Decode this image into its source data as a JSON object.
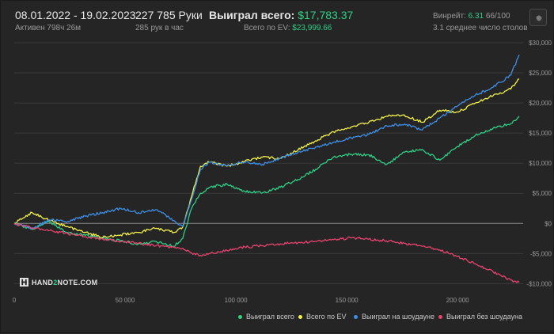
{
  "header": {
    "date_range": "08.01.2022 - 19.02.2023",
    "active_label": "Активен 798ч 26м",
    "hands_label": "227 785 Руки",
    "hands_per_hour": "285 рук в час",
    "won_total_label": "Выиграл всего:",
    "won_total_value": "$17,783.37",
    "ev_label": "Всего по EV:",
    "ev_value": "$23,999.66",
    "winrate_label": "Винрейт:",
    "winrate_value": "6.31",
    "winrate_rest": "66/100",
    "tables_label": "3.1 среднее число столов"
  },
  "logo": {
    "text_a": "HAND",
    "text_b": "2",
    "text_c": "NOTE.COM"
  },
  "icons": {
    "settings": "gear-icon",
    "logo": "hand2note-logo-icon"
  },
  "colors": {
    "won_total": "#2fcf86",
    "ev": "#f2f24a",
    "showdown": "#3f8fe6",
    "non_showdown": "#e8436f",
    "grid": "#3a3a3a",
    "zero_line": "#8c8c8c"
  },
  "chart_data": {
    "type": "line",
    "title": "",
    "xlabel": "",
    "ylabel": "",
    "xlim": [
      0,
      227785
    ],
    "ylim": [
      -11000,
      30000
    ],
    "x_ticks": [
      0,
      50000,
      100000,
      150000,
      200000
    ],
    "x_tick_labels": [
      "0",
      "50 000",
      "100 000",
      "150 000",
      "200 000"
    ],
    "y_ticks": [
      30000,
      25000,
      20000,
      15000,
      10000,
      5000,
      0,
      -5000,
      -10000
    ],
    "y_tick_labels": [
      "$30,000",
      "$25,000",
      "$20,000",
      "$15,000",
      "$10,000",
      "$5,000",
      "$0",
      "-$5,000",
      "-$10,000"
    ],
    "legend_position": "bottom-right",
    "series": [
      {
        "name": "Выиграл всего",
        "color": "#2fcf86",
        "x": [
          0,
          8000,
          16000,
          24000,
          32000,
          40000,
          48000,
          56000,
          64000,
          72000,
          76000,
          80000,
          84000,
          88000,
          96000,
          104000,
          112000,
          120000,
          128000,
          136000,
          144000,
          152000,
          160000,
          168000,
          176000,
          184000,
          192000,
          200000,
          208000,
          216000,
          224000,
          227785
        ],
        "y": [
          0,
          -1000,
          200,
          -1500,
          -2000,
          -2500,
          -2900,
          -3400,
          -3000,
          -3800,
          -2500,
          2500,
          5000,
          6000,
          6500,
          5300,
          5100,
          6000,
          7300,
          9000,
          11000,
          11500,
          11400,
          9800,
          11800,
          12300,
          10500,
          12800,
          14600,
          15800,
          16600,
          17783
        ]
      },
      {
        "name": "Всего по EV",
        "color": "#f2f24a",
        "x": [
          0,
          8000,
          16000,
          24000,
          32000,
          40000,
          48000,
          56000,
          64000,
          72000,
          76000,
          80000,
          84000,
          88000,
          96000,
          104000,
          112000,
          120000,
          128000,
          136000,
          144000,
          152000,
          160000,
          168000,
          176000,
          184000,
          192000,
          200000,
          208000,
          216000,
          224000,
          227785
        ],
        "y": [
          0,
          1800,
          500,
          -500,
          -1500,
          -2300,
          -1900,
          -1500,
          -800,
          -1500,
          -600,
          4500,
          9500,
          10200,
          9500,
          10300,
          11000,
          10800,
          12200,
          13700,
          15200,
          16000,
          16800,
          17800,
          18000,
          16800,
          18800,
          18500,
          20000,
          21200,
          22300,
          24000
        ]
      },
      {
        "name": "Выиграл на шоудауне",
        "color": "#3f8fe6",
        "x": [
          0,
          8000,
          16000,
          24000,
          32000,
          40000,
          48000,
          56000,
          64000,
          72000,
          76000,
          80000,
          84000,
          88000,
          96000,
          104000,
          112000,
          120000,
          128000,
          136000,
          144000,
          152000,
          160000,
          168000,
          176000,
          184000,
          192000,
          200000,
          208000,
          216000,
          224000,
          227785
        ],
        "y": [
          0,
          -800,
          600,
          300,
          1200,
          1800,
          2500,
          1800,
          2300,
          500,
          -500,
          4000,
          9000,
          10200,
          9600,
          10200,
          9800,
          10800,
          11800,
          12700,
          13500,
          14200,
          14800,
          16200,
          16500,
          15500,
          17500,
          19500,
          21300,
          22600,
          24600,
          28000
        ]
      },
      {
        "name": "Выиграл без шоудауна",
        "color": "#e8436f",
        "x": [
          0,
          8000,
          16000,
          24000,
          32000,
          40000,
          48000,
          56000,
          64000,
          72000,
          76000,
          80000,
          84000,
          88000,
          96000,
          104000,
          112000,
          120000,
          128000,
          136000,
          144000,
          152000,
          160000,
          168000,
          176000,
          184000,
          192000,
          200000,
          208000,
          216000,
          224000,
          227785
        ],
        "y": [
          0,
          -700,
          -1200,
          -1700,
          -2200,
          -2600,
          -3000,
          -3300,
          -3700,
          -4000,
          -4100,
          -4900,
          -5300,
          -5000,
          -4500,
          -3900,
          -3700,
          -3400,
          -3200,
          -3000,
          -2700,
          -2400,
          -2600,
          -2900,
          -3300,
          -3800,
          -4400,
          -5500,
          -6700,
          -8000,
          -9400,
          -9800
        ]
      }
    ]
  },
  "legend": {
    "items": [
      {
        "label": "Выиграл всего",
        "color": "#2fcf86"
      },
      {
        "label": "Всего по EV",
        "color": "#f2f24a"
      },
      {
        "label": "Выиграл на шоудауне",
        "color": "#3f8fe6"
      },
      {
        "label": "Выиграл без шоудауна",
        "color": "#e8436f"
      }
    ]
  }
}
